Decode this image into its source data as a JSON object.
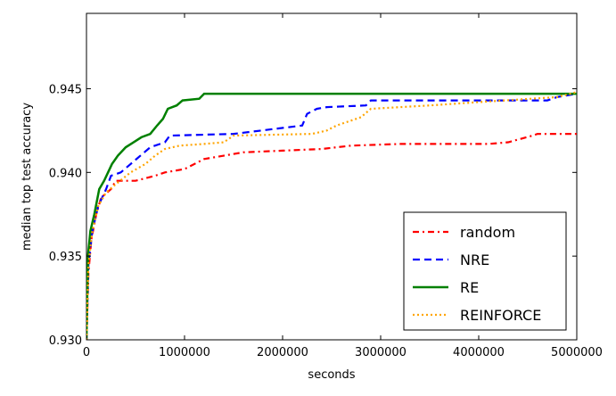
{
  "chart_data": {
    "type": "line",
    "title": "",
    "xlabel": "seconds",
    "ylabel": "median top test accuracy",
    "xlim": [
      0,
      5000000
    ],
    "ylim": [
      0.93,
      0.9495
    ],
    "x_ticks": [
      0,
      1000000,
      2000000,
      3000000,
      4000000,
      5000000
    ],
    "x_tick_labels": [
      "0",
      "1000000",
      "2000000",
      "3000000",
      "4000000",
      "5000000"
    ],
    "y_ticks": [
      0.93,
      0.935,
      0.94,
      0.945
    ],
    "y_tick_labels": [
      "0.930",
      "0.935",
      "0.940",
      "0.945"
    ],
    "grid": false,
    "legend_position": "lower-right",
    "series": [
      {
        "name": "random",
        "color": "#ff0000",
        "style": "dashdot",
        "points": [
          [
            0,
            0.93
          ],
          [
            20000,
            0.934
          ],
          [
            50000,
            0.936
          ],
          [
            100000,
            0.9375
          ],
          [
            150000,
            0.9385
          ],
          [
            250000,
            0.939
          ],
          [
            300000,
            0.9395
          ],
          [
            500000,
            0.9395
          ],
          [
            700000,
            0.9398
          ],
          [
            800000,
            0.94
          ],
          [
            1000000,
            0.9402
          ],
          [
            1200000,
            0.9408
          ],
          [
            1400000,
            0.941
          ],
          [
            1600000,
            0.9412
          ],
          [
            2000000,
            0.9413
          ],
          [
            2400000,
            0.9414
          ],
          [
            2700000,
            0.9416
          ],
          [
            3200000,
            0.9417
          ],
          [
            3600000,
            0.9417
          ],
          [
            4100000,
            0.9417
          ],
          [
            4300000,
            0.9418
          ],
          [
            4550000,
            0.9422
          ],
          [
            4600000,
            0.9423
          ],
          [
            5000000,
            0.9423
          ]
        ]
      },
      {
        "name": "NRE",
        "color": "#0000ff",
        "style": "dashed",
        "points": [
          [
            0,
            0.93
          ],
          [
            20000,
            0.9345
          ],
          [
            60000,
            0.9365
          ],
          [
            120000,
            0.938
          ],
          [
            200000,
            0.939
          ],
          [
            250000,
            0.9398
          ],
          [
            350000,
            0.94
          ],
          [
            450000,
            0.9405
          ],
          [
            550000,
            0.941
          ],
          [
            650000,
            0.9415
          ],
          [
            800000,
            0.9418
          ],
          [
            850000,
            0.9422
          ],
          [
            1500000,
            0.9423
          ],
          [
            2200000,
            0.9428
          ],
          [
            2250000,
            0.9435
          ],
          [
            2350000,
            0.9438
          ],
          [
            2450000,
            0.9439
          ],
          [
            2850000,
            0.944
          ],
          [
            2900000,
            0.9443
          ],
          [
            4700000,
            0.9443
          ],
          [
            4800000,
            0.9445
          ],
          [
            5000000,
            0.9447
          ]
        ]
      },
      {
        "name": "RE",
        "color": "#008000",
        "style": "solid",
        "points": [
          [
            0,
            0.93
          ],
          [
            15000,
            0.935
          ],
          [
            40000,
            0.9365
          ],
          [
            80000,
            0.9375
          ],
          [
            130000,
            0.939
          ],
          [
            180000,
            0.9395
          ],
          [
            220000,
            0.94
          ],
          [
            260000,
            0.9405
          ],
          [
            320000,
            0.941
          ],
          [
            400000,
            0.9415
          ],
          [
            480000,
            0.9418
          ],
          [
            560000,
            0.9421
          ],
          [
            650000,
            0.9423
          ],
          [
            720000,
            0.9428
          ],
          [
            780000,
            0.9432
          ],
          [
            830000,
            0.9438
          ],
          [
            920000,
            0.944
          ],
          [
            980000,
            0.9443
          ],
          [
            1150000,
            0.9444
          ],
          [
            1200000,
            0.9447
          ],
          [
            5000000,
            0.9447
          ]
        ]
      },
      {
        "name": "REINFORCE",
        "color": "#ffa500",
        "style": "dotted",
        "points": [
          [
            0,
            0.93
          ],
          [
            20000,
            0.9345
          ],
          [
            60000,
            0.9365
          ],
          [
            120000,
            0.938
          ],
          [
            200000,
            0.9388
          ],
          [
            300000,
            0.9393
          ],
          [
            450000,
            0.94
          ],
          [
            600000,
            0.9405
          ],
          [
            700000,
            0.941
          ],
          [
            800000,
            0.9414
          ],
          [
            950000,
            0.9416
          ],
          [
            1200000,
            0.9417
          ],
          [
            1400000,
            0.9418
          ],
          [
            1500000,
            0.9422
          ],
          [
            2300000,
            0.9423
          ],
          [
            2450000,
            0.9425
          ],
          [
            2550000,
            0.9428
          ],
          [
            2800000,
            0.9433
          ],
          [
            2900000,
            0.9438
          ],
          [
            3500000,
            0.944
          ],
          [
            4000000,
            0.9442
          ],
          [
            4800000,
            0.9445
          ],
          [
            5000000,
            0.9448
          ]
        ]
      }
    ]
  }
}
